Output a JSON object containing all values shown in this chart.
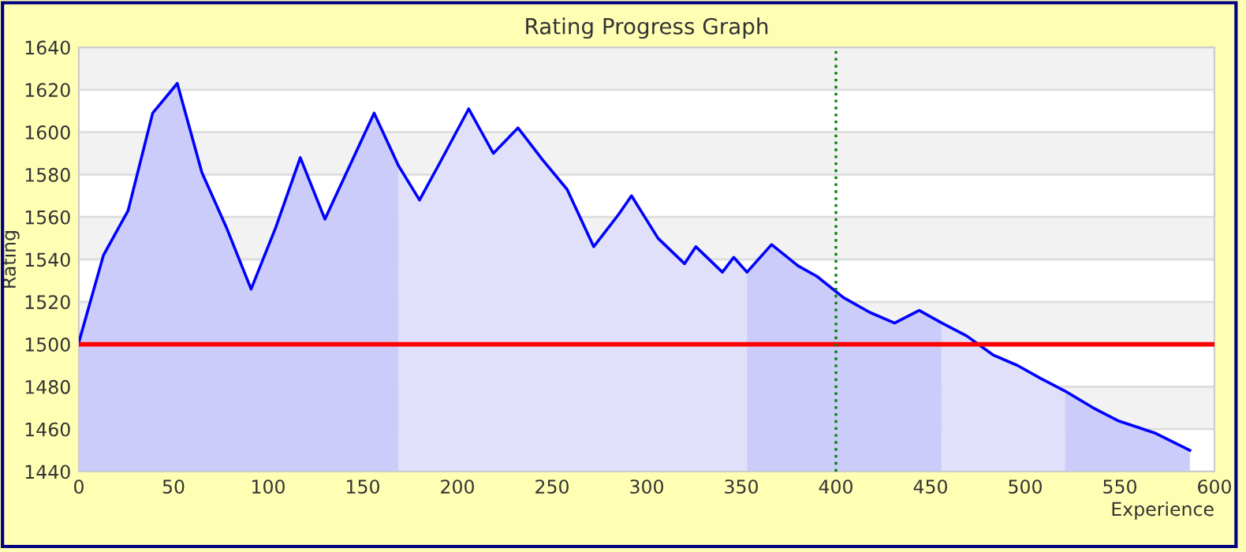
{
  "chart_data": {
    "type": "line",
    "title": "Rating Progress Graph",
    "xlabel": "Experience",
    "ylabel": "Rating",
    "xlim": [
      0,
      600
    ],
    "xticks": [
      0,
      50,
      100,
      150,
      200,
      250,
      300,
      350,
      400,
      450,
      500,
      550,
      600
    ],
    "ylim": [
      1440,
      1640
    ],
    "yticks": [
      1440,
      1460,
      1480,
      1500,
      1520,
      1540,
      1560,
      1580,
      1600,
      1620,
      1640
    ],
    "grid": "y",
    "legend": false,
    "ref_lines": [
      {
        "axis": "y",
        "value": 1500,
        "color": "#ff0000",
        "line_style": "solid"
      },
      {
        "axis": "x",
        "value": 400,
        "color": "#008000",
        "line_style": "dotted"
      }
    ],
    "series": [
      {
        "type": "area",
        "color": "#ccccfa",
        "x": [
          0,
          13,
          26,
          39,
          52,
          65,
          78,
          91,
          104,
          117,
          130,
          143,
          156,
          169
        ],
        "values": [
          1501,
          1542,
          1563,
          1609,
          1623,
          1581,
          1555,
          1526,
          1555,
          1588,
          1559,
          1584,
          1609,
          1584
        ]
      },
      {
        "type": "area",
        "color": "#e0e0fa",
        "x": [
          169,
          180,
          191,
          206,
          219,
          232,
          245,
          258,
          272,
          285,
          292,
          306,
          320,
          326,
          340,
          346,
          353
        ],
        "values": [
          1584,
          1568,
          1586,
          1611,
          1590,
          1602,
          1587,
          1573,
          1546,
          1561,
          1570,
          1550,
          1538,
          1546,
          1534,
          1541,
          1534
        ]
      },
      {
        "type": "area",
        "color": "#ccccfa",
        "x": [
          353,
          366,
          380,
          390,
          404,
          418,
          431,
          444,
          456
        ],
        "values": [
          1534,
          1547,
          1537,
          1532,
          1522,
          1515,
          1510,
          1516,
          1510
        ]
      },
      {
        "type": "area",
        "color": "#e0e0fa",
        "x": [
          456,
          469,
          483,
          496,
          508,
          521
        ],
        "values": [
          1510,
          1504,
          1495,
          1490,
          1484,
          1478
        ]
      },
      {
        "type": "area",
        "color": "#ccccfa",
        "x": [
          521,
          536,
          549,
          569,
          587
        ],
        "values": [
          1478,
          1470,
          1464,
          1458,
          1450
        ]
      },
      {
        "color": "#0000ff",
        "x": [
          0,
          13,
          26,
          39,
          52,
          65,
          78,
          91,
          104,
          117,
          130,
          143,
          156,
          169,
          180,
          191,
          206,
          219,
          232,
          245,
          258,
          272,
          285,
          292,
          306,
          320,
          326,
          340,
          346,
          353,
          366,
          380,
          390,
          404,
          418,
          431,
          444,
          456,
          469,
          483,
          496,
          508,
          521,
          536,
          549,
          569,
          587
        ],
        "values": [
          1501,
          1542,
          1563,
          1609,
          1623,
          1581,
          1555,
          1526,
          1555,
          1588,
          1559,
          1584,
          1609,
          1584,
          1568,
          1586,
          1611,
          1590,
          1602,
          1587,
          1573,
          1546,
          1561,
          1570,
          1550,
          1538,
          1546,
          1534,
          1541,
          1534,
          1547,
          1537,
          1532,
          1522,
          1515,
          1510,
          1516,
          1510,
          1504,
          1495,
          1490,
          1484,
          1478,
          1470,
          1464,
          1458,
          1450
        ]
      }
    ]
  }
}
